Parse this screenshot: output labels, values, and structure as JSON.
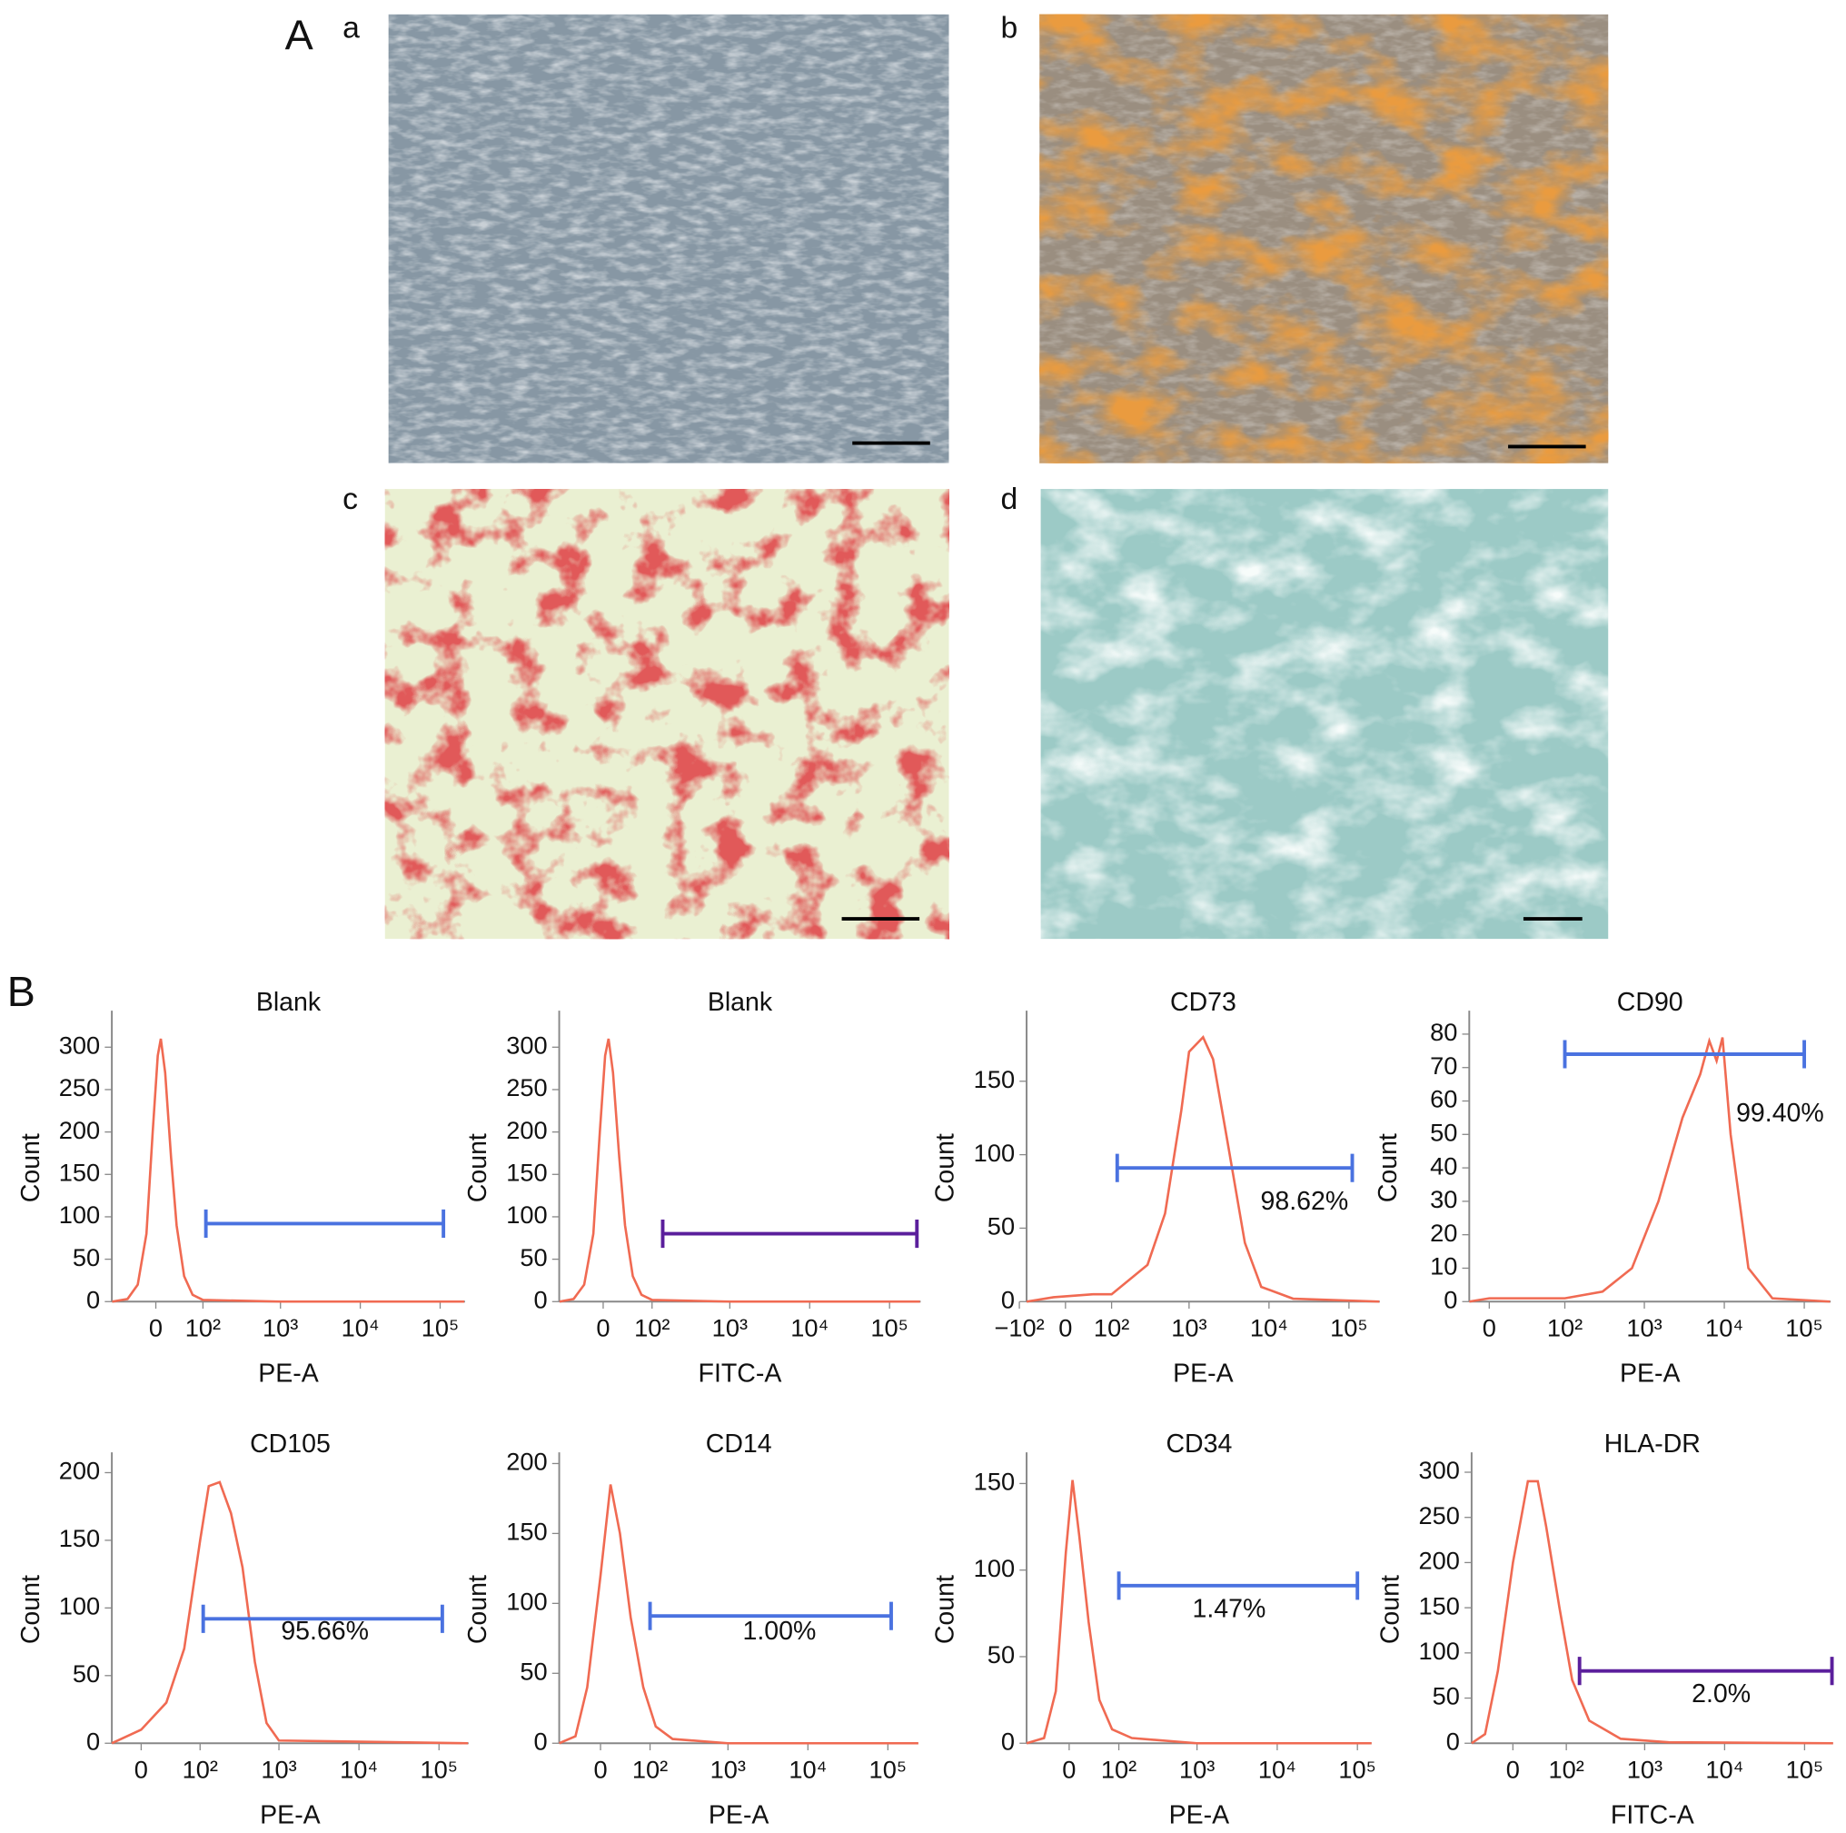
{
  "figure": {
    "panel_a": {
      "label": "A",
      "images": [
        {
          "label": "a"
        },
        {
          "label": "b"
        },
        {
          "label": "c"
        },
        {
          "label": "d"
        }
      ]
    },
    "panel_b": {
      "label": "B"
    }
  },
  "chart_data": [
    {
      "type": "histogram-line",
      "title": "Blank",
      "xlabel": "PE-A",
      "ylabel": "Count",
      "color": "#f06a52",
      "xlim": [
        -90,
        205000
      ],
      "ylim": [
        0,
        343
      ],
      "yticks": [
        0,
        50,
        100,
        150,
        200,
        250,
        300
      ],
      "xticks": [
        0,
        {
          "value": 100,
          "label": "10²"
        },
        {
          "value": 1000,
          "label": "10³"
        },
        {
          "value": 10000,
          "label": "10⁴"
        },
        {
          "value": 100000,
          "label": "10⁵"
        }
      ],
      "x": [
        -89,
        -50,
        -30,
        -15,
        -5,
        3,
        8,
        15,
        25,
        35,
        50,
        70,
        100,
        1000,
        200000
      ],
      "values": [
        0,
        3,
        20,
        80,
        200,
        290,
        310,
        270,
        170,
        90,
        30,
        8,
        2,
        0,
        0
      ],
      "gate": {
        "x": [
          110,
          110000
        ],
        "y": 92,
        "color": "#4a72e0"
      }
    },
    {
      "type": "histogram-line",
      "title": "Blank",
      "xlabel": "FITC-A",
      "ylabel": "Count",
      "color": "#f06a52",
      "xlim": [
        -85,
        245000
      ],
      "ylim": [
        0,
        343
      ],
      "yticks": [
        0,
        50,
        100,
        150,
        200,
        250,
        300
      ],
      "xticks": [
        0,
        {
          "value": 100,
          "label": "10²"
        },
        {
          "value": 1000,
          "label": "10³"
        },
        {
          "value": 10000,
          "label": "10⁴"
        },
        {
          "value": 100000,
          "label": "10⁵"
        }
      ],
      "x": [
        -84,
        -50,
        -30,
        -15,
        -5,
        3,
        8,
        15,
        25,
        35,
        50,
        70,
        100,
        1000,
        240000
      ],
      "values": [
        0,
        3,
        20,
        80,
        200,
        290,
        310,
        270,
        170,
        90,
        30,
        8,
        2,
        0,
        0
      ],
      "gate": {
        "x": [
          140,
          220000
        ],
        "y": 80,
        "color": "#5b1f9c"
      }
    },
    {
      "type": "histogram-line",
      "title": "CD73",
      "xlabel": "PE-A",
      "ylabel": "Count",
      "color": "#f06a52",
      "xlim": [
        -78,
        243000
      ],
      "ylim": [
        0,
        198
      ],
      "yticks": [
        0,
        50,
        100,
        150
      ],
      "xticks": [
        {
          "value": -100,
          "label": "−10²"
        },
        0,
        {
          "value": 100,
          "label": "10²"
        },
        {
          "value": 1000,
          "label": "10³"
        },
        {
          "value": 10000,
          "label": "10⁴"
        },
        {
          "value": 100000,
          "label": "10⁵"
        }
      ],
      "x": [
        -78,
        -20,
        50,
        100,
        300,
        500,
        800,
        1000,
        1500,
        2000,
        3000,
        5000,
        8000,
        20000,
        240000
      ],
      "values": [
        0,
        3,
        5,
        5,
        25,
        60,
        130,
        170,
        180,
        165,
        110,
        40,
        10,
        2,
        0
      ],
      "gate": {
        "x": [
          120,
          110000
        ],
        "y": 91,
        "color": "#4a72e0",
        "label": "98.62%"
      }
    },
    {
      "type": "histogram-line",
      "title": "CD90",
      "xlabel": "PE-A",
      "ylabel": "Count",
      "color": "#f06a52",
      "xlim": [
        -14,
        214000
      ],
      "ylim": [
        0,
        87
      ],
      "yticks": [
        0,
        10,
        20,
        30,
        40,
        50,
        60,
        70,
        80
      ],
      "xticks": [
        0,
        {
          "value": 100,
          "label": "10²"
        },
        {
          "value": 1000,
          "label": "10³"
        },
        {
          "value": 10000,
          "label": "10⁴"
        },
        {
          "value": 100000,
          "label": "10⁵"
        }
      ],
      "x": [
        -14,
        0,
        100,
        300,
        700,
        1500,
        3000,
        5000,
        6500,
        8000,
        9500,
        12000,
        20000,
        40000,
        210000
      ],
      "values": [
        0,
        1,
        1,
        3,
        10,
        30,
        55,
        68,
        78,
        72,
        79,
        50,
        10,
        1,
        0
      ],
      "gate": {
        "x": [
          100,
          100000
        ],
        "y": 74,
        "color": "#4a72e0",
        "label": "99.40%"
      }
    },
    {
      "type": "histogram-line",
      "title": "CD105",
      "xlabel": "PE-A",
      "ylabel": "Count",
      "color": "#f06a52",
      "xlim": [
        -36,
        234000
      ],
      "ylim": [
        0,
        215
      ],
      "yticks": [
        0,
        50,
        100,
        150,
        200
      ],
      "xticks": [
        0,
        {
          "value": 100,
          "label": "10²"
        },
        {
          "value": 1000,
          "label": "10³"
        },
        {
          "value": 10000,
          "label": "10⁴"
        },
        {
          "value": 100000,
          "label": "10⁵"
        }
      ],
      "x": [
        -36,
        0,
        30,
        60,
        100,
        130,
        180,
        250,
        350,
        500,
        700,
        1000,
        230000
      ],
      "values": [
        0,
        10,
        30,
        70,
        150,
        190,
        193,
        170,
        130,
        60,
        15,
        2,
        0
      ],
      "gate": {
        "x": [
          110,
          110000
        ],
        "y": 92,
        "color": "#4a72e0",
        "label": "95.66%"
      }
    },
    {
      "type": "histogram-line",
      "title": "CD14",
      "xlabel": "PE-A",
      "ylabel": "Count",
      "color": "#f06a52",
      "xlim": [
        -76,
        240000
      ],
      "ylim": [
        0,
        208
      ],
      "yticks": [
        0,
        50,
        100,
        150,
        200
      ],
      "xticks": [
        0,
        {
          "value": 100,
          "label": "10²"
        },
        {
          "value": 1000,
          "label": "10³"
        },
        {
          "value": 10000,
          "label": "10⁴"
        },
        {
          "value": 100000,
          "label": "10⁵"
        }
      ],
      "x": [
        -76,
        -40,
        -20,
        0,
        15,
        30,
        50,
        80,
        120,
        200,
        1000,
        240000
      ],
      "values": [
        0,
        5,
        40,
        120,
        185,
        150,
        90,
        40,
        12,
        3,
        0,
        0
      ],
      "gate": {
        "x": [
          100,
          110000
        ],
        "y": 91,
        "color": "#4a72e0",
        "label": "1.00%"
      }
    },
    {
      "type": "histogram-line",
      "title": "CD34",
      "xlabel": "PE-A",
      "ylabel": "Count",
      "color": "#f06a52",
      "xlim": [
        -79,
        150000
      ],
      "ylim": [
        0,
        168
      ],
      "yticks": [
        0,
        50,
        100,
        150
      ],
      "xticks": [
        0,
        {
          "value": 100,
          "label": "10²"
        },
        {
          "value": 1000,
          "label": "10³"
        },
        {
          "value": 10000,
          "label": "10⁴"
        },
        {
          "value": 100000,
          "label": "10⁵"
        }
      ],
      "x": [
        -79,
        -40,
        -20,
        -5,
        5,
        15,
        30,
        50,
        80,
        150,
        1000,
        150000
      ],
      "values": [
        0,
        3,
        30,
        110,
        152,
        120,
        70,
        25,
        8,
        3,
        0,
        0
      ],
      "gate": {
        "x": [
          100,
          100000
        ],
        "y": 91,
        "color": "#4a72e0",
        "label": "1.47%"
      }
    },
    {
      "type": "histogram-line",
      "title": "HLA-DR",
      "xlabel": "FITC-A",
      "ylabel": "Count",
      "color": "#f06a52",
      "xlim": [
        -67,
        227000
      ],
      "ylim": [
        0,
        322
      ],
      "yticks": [
        0,
        50,
        100,
        150,
        200,
        250,
        300
      ],
      "xticks": [
        0,
        {
          "value": 100,
          "label": "10²"
        },
        {
          "value": 1000,
          "label": "10³"
        },
        {
          "value": 10000,
          "label": "10⁴"
        },
        {
          "value": 100000,
          "label": "10⁵"
        }
      ],
      "x": [
        -67,
        -40,
        -20,
        0,
        20,
        35,
        50,
        80,
        120,
        200,
        500,
        2000,
        227000
      ],
      "values": [
        0,
        10,
        80,
        200,
        290,
        290,
        240,
        150,
        70,
        25,
        5,
        1,
        0
      ],
      "gate": {
        "x": [
          150,
          220000
        ],
        "y": 80,
        "color": "#5b1f9c",
        "label": "2.0%"
      }
    }
  ]
}
